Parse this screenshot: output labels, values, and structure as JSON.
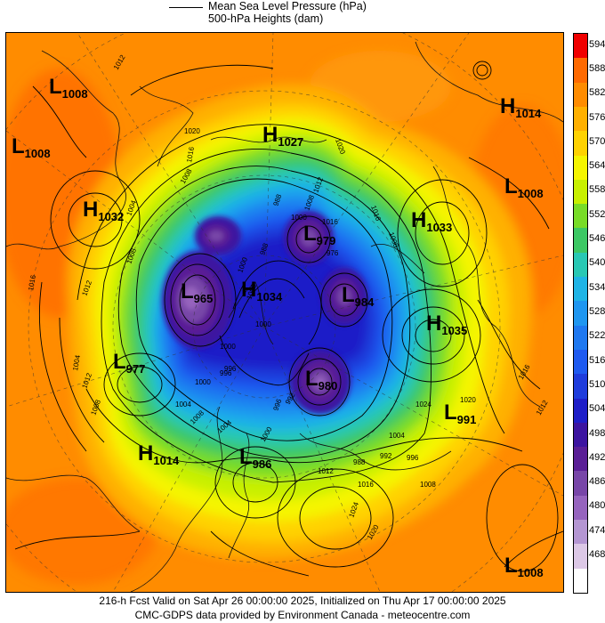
{
  "legend": {
    "line1": "Mean Sea Level Pressure (hPa)",
    "line2": "500-hPa Heights (dam)"
  },
  "colorbar": [
    {
      "label": "594",
      "color": "#f00000"
    },
    {
      "label": "588",
      "color": "#ff6a00"
    },
    {
      "label": "582",
      "color": "#ff8c00"
    },
    {
      "label": "576",
      "color": "#ffb000"
    },
    {
      "label": "570",
      "color": "#ffd200"
    },
    {
      "label": "564",
      "color": "#f5f500"
    },
    {
      "label": "558",
      "color": "#c8f000"
    },
    {
      "label": "552",
      "color": "#78dc28"
    },
    {
      "label": "546",
      "color": "#3cc864"
    },
    {
      "label": "540",
      "color": "#28c8b4"
    },
    {
      "label": "534",
      "color": "#1eb4e6"
    },
    {
      "label": "528",
      "color": "#1e96f0"
    },
    {
      "label": "522",
      "color": "#1e78f0"
    },
    {
      "label": "516",
      "color": "#1e5af0"
    },
    {
      "label": "510",
      "color": "#1e3cdc"
    },
    {
      "label": "504",
      "color": "#1e1ec8"
    },
    {
      "label": "498",
      "color": "#3c14a0"
    },
    {
      "label": "492",
      "color": "#5a1e96"
    },
    {
      "label": "486",
      "color": "#7846a8"
    },
    {
      "label": "480",
      "color": "#9664be"
    },
    {
      "label": "474",
      "color": "#b496d2"
    },
    {
      "label": "468",
      "color": "#dcc8e6"
    },
    {
      "label": "",
      "color": "#ffffff"
    }
  ],
  "pressure_centers": [
    {
      "type": "L",
      "value": "1008"
    },
    {
      "type": "L",
      "value": "1008"
    },
    {
      "type": "H",
      "value": "1032"
    },
    {
      "type": "H",
      "value": "1027"
    },
    {
      "type": "L",
      "value": "979"
    },
    {
      "type": "L",
      "value": "965"
    },
    {
      "type": "H",
      "value": "1034"
    },
    {
      "type": "L",
      "value": "984"
    },
    {
      "type": "H",
      "value": "1033"
    },
    {
      "type": "H",
      "value": "1014"
    },
    {
      "type": "L",
      "value": "1008"
    },
    {
      "type": "H",
      "value": "1035"
    },
    {
      "type": "L",
      "value": "977"
    },
    {
      "type": "L",
      "value": "980"
    },
    {
      "type": "L",
      "value": "991"
    },
    {
      "type": "H",
      "value": "1014"
    },
    {
      "type": "L",
      "value": "986"
    },
    {
      "type": "L",
      "value": "1008"
    }
  ],
  "isobar_labels": [
    "1012",
    "1020",
    "1016",
    "1008",
    "1004",
    "1012",
    "1008",
    "1016",
    "1004",
    "1012",
    "1008",
    "1020",
    "1016",
    "1008",
    "1000",
    "996",
    "1000",
    "1004",
    "1008",
    "1004",
    "1000",
    "996",
    "992",
    "1004",
    "996",
    "992",
    "988",
    "1012",
    "1016",
    "1008",
    "1024",
    "1020",
    "1020",
    "1024",
    "1016",
    "1012",
    "988",
    "1000",
    "1008",
    "1012",
    "1016",
    "976",
    "1000",
    "996",
    "1008",
    "988",
    "1000"
  ],
  "footer": {
    "line1": "216-h Fcst Valid on Sat Apr 26 00:00:00 2025, Initialized on Thu Apr 17 00:00:00 2025",
    "line2": "CMC-GDPS data provided by Environment Canada - meteocentre.com"
  }
}
